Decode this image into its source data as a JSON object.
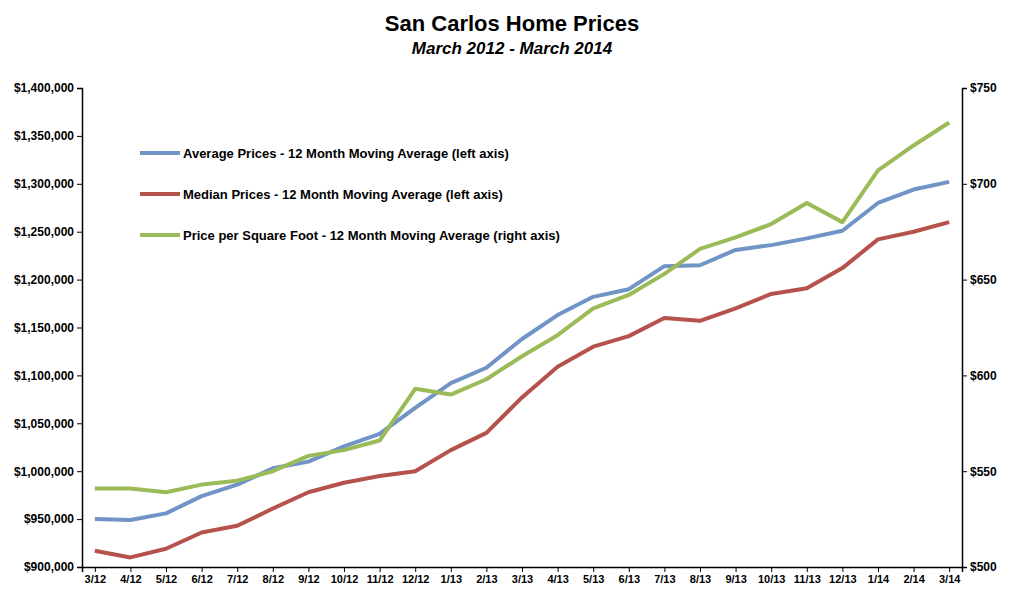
{
  "chart_data": {
    "type": "line",
    "title": "San Carlos Home Prices",
    "subtitle": "March 2012 - March 2014",
    "categories": [
      "3/12",
      "4/12",
      "5/12",
      "6/12",
      "7/12",
      "8/12",
      "9/12",
      "10/12",
      "11/12",
      "12/12",
      "1/13",
      "2/13",
      "3/13",
      "4/13",
      "5/13",
      "6/13",
      "7/13",
      "8/13",
      "9/13",
      "10/13",
      "11/13",
      "12/13",
      "1/14",
      "2/14",
      "3/14"
    ],
    "series": [
      {
        "name": "Average Prices - 12 Month Moving Average (left axis)",
        "color": "#7094c6",
        "axis": "y",
        "values": [
          950000,
          949000,
          956000,
          974000,
          986000,
          1003000,
          1010000,
          1026000,
          1039000,
          1066000,
          1092000,
          1108000,
          1138000,
          1163000,
          1182000,
          1190000,
          1214000,
          1215000,
          1231000,
          1236000,
          1243000,
          1251000,
          1280000,
          1294000,
          1302000
        ]
      },
      {
        "name": "Median Prices - 12 Month Moving Average (left axis)",
        "color": "#b5524c",
        "axis": "y",
        "values": [
          917000,
          910000,
          919000,
          936000,
          943000,
          961000,
          978000,
          988000,
          995000,
          1000000,
          1022000,
          1040000,
          1077000,
          1109000,
          1130000,
          1141000,
          1160000,
          1157000,
          1170000,
          1185000,
          1191000,
          1212000,
          1242000,
          1250000,
          1260000
        ]
      },
      {
        "name": "Price per Square Foot - 12 Month Moving Average (right axis)",
        "color": "#9bbb59",
        "axis": "y2",
        "values": [
          541,
          541,
          539,
          543,
          545,
          550,
          558,
          561,
          566,
          593,
          590,
          598,
          610,
          621,
          635,
          642,
          653,
          666,
          672,
          679,
          690,
          680,
          707,
          720,
          732
        ]
      }
    ],
    "ylim": [
      900000,
      1400000
    ],
    "yticks": [
      {
        "value": 900000,
        "label": "$900,000"
      },
      {
        "value": 950000,
        "label": "$950,000"
      },
      {
        "value": 1000000,
        "label": "$1,000,000"
      },
      {
        "value": 1050000,
        "label": "$1,050,000"
      },
      {
        "value": 1100000,
        "label": "$1,100,000"
      },
      {
        "value": 1150000,
        "label": "$1,150,000"
      },
      {
        "value": 1200000,
        "label": "$1,200,000"
      },
      {
        "value": 1250000,
        "label": "$1,250,000"
      },
      {
        "value": 1300000,
        "label": "$1,300,000"
      },
      {
        "value": 1350000,
        "label": "$1,350,000"
      },
      {
        "value": 1400000,
        "label": "$1,400,000"
      }
    ],
    "y2lim": [
      500,
      750
    ],
    "y2ticks": [
      {
        "value": 500,
        "label": "$500"
      },
      {
        "value": 550,
        "label": "$550"
      },
      {
        "value": 600,
        "label": "$600"
      },
      {
        "value": 650,
        "label": "$650"
      },
      {
        "value": 700,
        "label": "$700"
      },
      {
        "value": 750,
        "label": "$750"
      }
    ],
    "grid": false,
    "legend": "upper left"
  }
}
